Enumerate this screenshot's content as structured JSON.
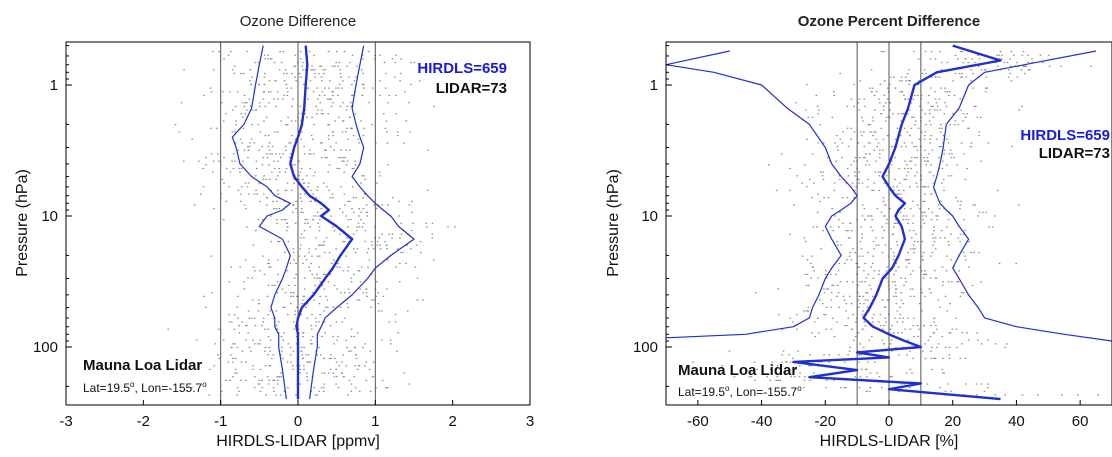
{
  "figure": {
    "panels": [
      {
        "title": "Ozone Difference",
        "xlabel": "HIRDLS-LIDAR [ppmv]",
        "ylabel": "Pressure (hPa)",
        "hirdls_count": "HIRDLS=659",
        "lidar_count": "LIDAR=73",
        "station": "Mauna Loa Lidar",
        "lat": "Lat=19.5",
        "lon": "Lon=-155.7",
        "degree": "o",
        "sep": ", "
      },
      {
        "title": "Ozone Percent Difference",
        "xlabel": "HIRDLS-LIDAR  [%]",
        "ylabel": "Pressure (hPa)",
        "hirdls_count": "HIRDLS=659",
        "lidar_count": "LIDAR=73",
        "station": "Mauna Loa Lidar",
        "lat": "Lat=19.5",
        "lon": "Lon=-155.7",
        "degree": "o",
        "sep": ", "
      }
    ]
  },
  "chart_data": [
    {
      "type": "line",
      "title": "Ozone Difference",
      "xlabel": "HIRDLS-LIDAR [ppmv]",
      "ylabel": "Pressure (hPa)",
      "xlim": [
        -3,
        3
      ],
      "ylim": [
        250,
        0.5
      ],
      "y_scale": "log",
      "y_reversed": true,
      "xticks": [
        -3,
        -2,
        -1,
        0,
        1,
        2,
        3
      ],
      "xtick_labels": [
        "-3",
        "-2",
        "-1",
        "0",
        "1",
        "2",
        "3"
      ],
      "yticks": [
        1,
        10,
        100
      ],
      "ytick_labels": [
        "1",
        "10",
        "100"
      ],
      "reference_lines_x": [
        -1,
        0,
        1
      ],
      "annotations": [
        "HIRDLS=659",
        "LIDAR=73",
        "Mauna Loa Lidar",
        "Lat=19.5°, Lon=-155.7°"
      ],
      "series": [
        {
          "role": "mean",
          "x": [
            0.1,
            0.12,
            0.1,
            0.08,
            0.05,
            0.0,
            -0.05,
            -0.1,
            -0.05,
            0.05,
            0.15,
            0.3,
            0.4,
            0.3,
            0.5,
            0.7,
            0.55,
            0.45,
            0.35,
            0.2,
            0.05,
            0.0,
            -0.02,
            0.0,
            0.0,
            0.0,
            0.0
          ],
          "y": [
            0.5,
            0.7,
            1.0,
            1.5,
            2.0,
            2.5,
            3.0,
            4.0,
            5.0,
            6.0,
            7.0,
            8.0,
            9.0,
            10.0,
            12.0,
            15.0,
            20.0,
            25.0,
            30.0,
            40.0,
            50.0,
            60.0,
            70.0,
            80.0,
            100.0,
            150.0,
            250.0
          ]
        },
        {
          "role": "mean-1sd",
          "x": [
            -0.45,
            -0.5,
            -0.55,
            -0.6,
            -0.7,
            -0.85,
            -0.8,
            -0.75,
            -0.6,
            -0.4,
            -0.3,
            -0.1,
            -0.2,
            -0.4,
            -0.5,
            -0.2,
            -0.1,
            -0.15,
            -0.2,
            -0.3,
            -0.35,
            -0.3,
            -0.3,
            -0.25,
            -0.25,
            -0.2,
            -0.15
          ],
          "y": [
            0.5,
            0.7,
            1.0,
            1.5,
            2.0,
            2.5,
            3.0,
            4.0,
            5.0,
            6.0,
            7.0,
            8.0,
            9.0,
            10.0,
            12.0,
            15.0,
            20.0,
            25.0,
            30.0,
            40.0,
            50.0,
            60.0,
            70.0,
            80.0,
            100.0,
            150.0,
            250.0
          ]
        },
        {
          "role": "mean+1sd",
          "x": [
            0.85,
            0.8,
            0.75,
            0.7,
            0.75,
            0.8,
            0.85,
            0.8,
            0.7,
            0.8,
            0.9,
            1.0,
            1.1,
            1.2,
            1.3,
            1.5,
            1.2,
            1.0,
            0.9,
            0.7,
            0.5,
            0.35,
            0.3,
            0.25,
            0.25,
            0.2,
            0.15
          ],
          "y": [
            0.5,
            0.7,
            1.0,
            1.5,
            2.0,
            2.5,
            3.0,
            4.0,
            5.0,
            6.0,
            7.0,
            8.0,
            9.0,
            10.0,
            12.0,
            15.0,
            20.0,
            25.0,
            30.0,
            40.0,
            50.0,
            60.0,
            70.0,
            80.0,
            100.0,
            150.0,
            250.0
          ]
        }
      ]
    },
    {
      "type": "line",
      "title": "Ozone Percent Difference",
      "xlabel": "HIRDLS-LIDAR  [%]",
      "ylabel": "Pressure (hPa)",
      "xlim": [
        -70,
        70
      ],
      "ylim": [
        250,
        0.5
      ],
      "y_scale": "log",
      "y_reversed": true,
      "xticks": [
        -60,
        -40,
        -20,
        0,
        20,
        40,
        60
      ],
      "xtick_labels": [
        "-60",
        "-40",
        "-20",
        "0",
        "20",
        "40",
        "60"
      ],
      "yticks": [
        1,
        10,
        100
      ],
      "ytick_labels": [
        "1",
        "10",
        "100"
      ],
      "reference_lines_x": [
        -10,
        0,
        10
      ],
      "annotations": [
        "HIRDLS=659",
        "LIDAR=73",
        "Mauna Loa Lidar",
        "Lat=19.5°, Lon=-155.7°"
      ],
      "series": [
        {
          "role": "mean",
          "x": [
            20,
            35,
            15,
            8,
            6,
            4,
            2,
            0,
            -2,
            0,
            2,
            5,
            3,
            2,
            4,
            5,
            3,
            1,
            -2,
            -4,
            -6,
            -8,
            -5,
            0,
            5,
            10,
            -10,
            0,
            -30,
            -10,
            -25,
            10,
            0,
            35
          ],
          "y": [
            0.5,
            0.65,
            0.8,
            1.0,
            1.5,
            2.0,
            3.0,
            4.0,
            5.0,
            6.0,
            7.0,
            8.0,
            9.0,
            10.0,
            12.0,
            15.0,
            20.0,
            25.0,
            30.0,
            40.0,
            50.0,
            60.0,
            70.0,
            80.0,
            90.0,
            100.0,
            110.0,
            120.0,
            130.0,
            150.0,
            170.0,
            190.0,
            210.0,
            250.0
          ]
        },
        {
          "role": "mean-1sd",
          "x": [
            -50,
            -70,
            -55,
            -40,
            -32,
            -25,
            -20,
            -18,
            -15,
            -12,
            -10,
            -12,
            -15,
            -18,
            -20,
            -18,
            -15,
            -18,
            -20,
            -22,
            -24,
            -25,
            -30,
            -45,
            -70
          ],
          "y": [
            0.55,
            0.7,
            0.8,
            1.0,
            1.5,
            2.0,
            3.0,
            4.0,
            5.0,
            6.0,
            7.0,
            8.0,
            9.0,
            10.0,
            12.0,
            15.0,
            20.0,
            25.0,
            30.0,
            40.0,
            50.0,
            60.0,
            70.0,
            80.0,
            85.0
          ]
        },
        {
          "role": "mean+1sd",
          "x": [
            65,
            30,
            25,
            22,
            18,
            17,
            16,
            15,
            14,
            15,
            16,
            18,
            20,
            22,
            25,
            22,
            20,
            22,
            25,
            28,
            30,
            40,
            55,
            70
          ],
          "y": [
            0.55,
            0.8,
            1.0,
            1.5,
            2.0,
            3.0,
            4.0,
            5.0,
            6.0,
            7.0,
            8.0,
            9.0,
            10.0,
            12.0,
            15.0,
            20.0,
            25.0,
            30.0,
            40.0,
            50.0,
            60.0,
            70.0,
            80.0,
            90.0
          ]
        }
      ]
    }
  ]
}
